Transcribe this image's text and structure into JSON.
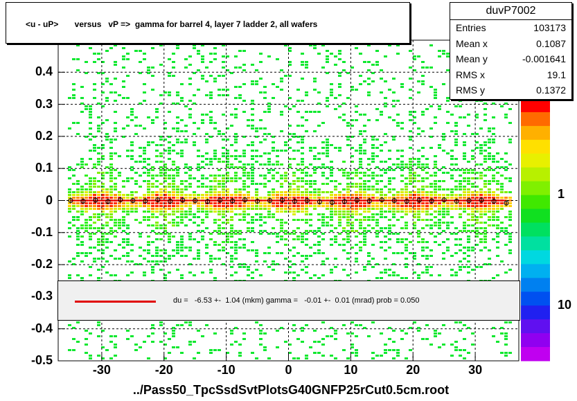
{
  "title": "<u - uP>       versus   vP =>  gamma for barrel 4, layer 7 ladder 2, all wafers",
  "stats": {
    "name": "duvP7002",
    "rows": [
      {
        "key": "Entries",
        "value": "103173"
      },
      {
        "key": "Mean x",
        "value": "0.1087"
      },
      {
        "key": "Mean y",
        "value": "-0.001641"
      },
      {
        "key": "RMS x",
        "value": "19.1"
      },
      {
        "key": "RMS y",
        "value": "0.1372"
      }
    ]
  },
  "fit": {
    "text": "du =   -6.53 +-  1.04 (mkm) gamma =   -0.01 +-  0.01 (mrad) prob = 0.050",
    "line_color": "#e00000"
  },
  "footer": "../Pass50_TpcSsdSvtPlotsG40GNFP25rCut0.5cm.root",
  "colors": {
    "fit_line": "#e00000",
    "marker": "#000000",
    "fit_box": "#f0f0f0"
  },
  "chart_data": {
    "type": "heatmap",
    "xlim": [
      -37,
      37
    ],
    "ylim": [
      -0.5,
      0.5
    ],
    "grid": true,
    "x_ticks": [
      -30,
      -20,
      -10,
      0,
      10,
      20,
      30
    ],
    "x_tick_labels": [
      "-30",
      "-20",
      "-10",
      "0",
      "10",
      "20",
      "30"
    ],
    "y_ticks": [
      0.4,
      0.3,
      0.2,
      0.1,
      0,
      -0.1,
      -0.2,
      -0.3,
      -0.4,
      -0.5
    ],
    "y_tick_labels": [
      "0.4",
      "0.3",
      "0.2",
      "0.1",
      "0",
      "-0.1",
      "-0.2",
      "-0.3",
      "-0.4",
      "-0.5"
    ],
    "z_scale": "log",
    "z_tick_labels": [
      "1",
      "10"
    ],
    "profile": {
      "x": [
        -35,
        -33,
        -31,
        -29,
        -27,
        -25,
        -23,
        -21,
        -19,
        -17,
        -15,
        -13,
        -11,
        -9,
        -7,
        -5,
        -3,
        -1,
        1,
        3,
        5,
        7,
        9,
        11,
        13,
        15,
        17,
        19,
        21,
        23,
        25,
        27,
        29,
        31,
        33,
        35
      ],
      "y": [
        0.0,
        -0.002,
        0.001,
        -0.003,
        0.002,
        0.0,
        -0.001,
        0.002,
        -0.002,
        0.001,
        0.0,
        -0.003,
        0.001,
        -0.001,
        0.002,
        -0.002,
        0.0,
        0.001,
        -0.002,
        0.0,
        -0.004,
        -0.006,
        -0.003,
        0.001,
        -0.001,
        0.002,
        0.0,
        -0.002,
        0.001,
        -0.001,
        0.002,
        -0.002,
        0.0,
        0.001,
        -0.002,
        -0.008
      ]
    }
  }
}
